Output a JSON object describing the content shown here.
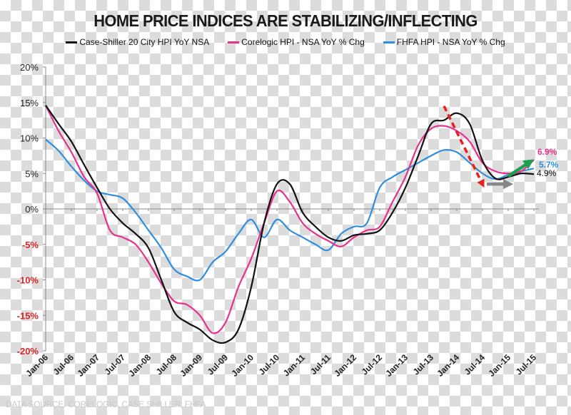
{
  "colors": {
    "case_shiller": "#111111",
    "corelogic": "#e8308f",
    "fhfa": "#2f8fde",
    "negative_tick": "#e02020",
    "positive_tick": "#222222",
    "arrow_red": "#e82020",
    "arrow_green": "#1aa050",
    "arrow_gray": "#888888",
    "source_text": "#c8c8c8"
  },
  "source": "DATA SOURCE: CORELOGIC, CASE SHILLER, FHFA",
  "chart_data": {
    "type": "line",
    "title": "HOME PRICE INDICES ARE STABILIZING/INFLECTING",
    "xlabel": "",
    "ylabel": "",
    "ylim": [
      -20,
      20
    ],
    "yticks": [
      20,
      15,
      10,
      5,
      0,
      -5,
      -10,
      -15,
      -20
    ],
    "ytick_labels": [
      "20%",
      "15%",
      "10%",
      "5%",
      "0%",
      "-5%",
      "-10%",
      "-15%",
      "-20%"
    ],
    "xtick_labels": [
      "Jan-06",
      "Jul-06",
      "Jan-07",
      "Jul-07",
      "Jan-08",
      "Jul-08",
      "Jan-09",
      "Jul-09",
      "Jan-10",
      "Jul-10",
      "Jan-11",
      "Jul-11",
      "Jan-12",
      "Jul-12",
      "Jan-13",
      "Jul-13",
      "Jan-14",
      "Jul-14",
      "Jan-15",
      "Jul-15"
    ],
    "x": [
      "Jan-06",
      "Apr-06",
      "Jul-06",
      "Oct-06",
      "Jan-07",
      "Apr-07",
      "Jul-07",
      "Oct-07",
      "Jan-08",
      "Apr-08",
      "Jul-08",
      "Oct-08",
      "Jan-09",
      "Apr-09",
      "Jul-09",
      "Oct-09",
      "Jan-10",
      "Apr-10",
      "Jul-10",
      "Oct-10",
      "Jan-11",
      "Apr-11",
      "Jul-11",
      "Oct-11",
      "Jan-12",
      "Apr-12",
      "Jul-12",
      "Oct-12",
      "Jan-13",
      "Apr-13",
      "Jul-13",
      "Oct-13",
      "Jan-14",
      "Apr-14",
      "Jul-14",
      "Oct-14",
      "Jan-15",
      "Apr-15",
      "Jul-15"
    ],
    "legend_position": "top-center",
    "grid": false,
    "series": [
      {
        "key": "case_shiller",
        "name": "Case-Shiller 20 City HPI YoY NSA",
        "values": [
          14.6,
          12,
          9.5,
          6.2,
          3,
          0,
          -2,
          -3.5,
          -5.5,
          -10,
          -14.5,
          -16,
          -17,
          -18.5,
          -18.8,
          -17,
          -11,
          -2,
          3.5,
          3.5,
          -0.5,
          -2.5,
          -4,
          -4.5,
          -3.7,
          -3.5,
          -3,
          -0.5,
          3,
          7.5,
          12,
          12.5,
          13.5,
          12,
          6.8,
          4.3,
          4.5,
          5,
          4.9
        ],
        "end_label": "4.9%"
      },
      {
        "key": "corelogic",
        "name": "Corelogic HPI - NSA YoY % Chg",
        "values": [
          14.6,
          11,
          8,
          4.5,
          2.2,
          -3,
          -4,
          -5,
          -7.5,
          -10.5,
          -13,
          -13.5,
          -15,
          -17.5,
          -16,
          -11,
          -7,
          -2,
          2.5,
          1,
          -2,
          -3.5,
          -4.5,
          -5.3,
          -4,
          -3,
          -2.5,
          1,
          4.5,
          9,
          11.3,
          11.7,
          11,
          9.5,
          6.5,
          5.3,
          5,
          5.3,
          6.9
        ],
        "end_label": "6.9%"
      },
      {
        "key": "fhfa",
        "name": "FHFA HPI - NSA YoY % Chg",
        "values": [
          9.8,
          8.2,
          6,
          4,
          2.5,
          2,
          1.5,
          -0.5,
          -3,
          -5.5,
          -8.5,
          -9.5,
          -10,
          -7.5,
          -6,
          -3.5,
          -1.5,
          -4,
          -1.5,
          -3,
          -4,
          -5,
          -5.8,
          -3.5,
          -2.5,
          -2,
          3,
          4.5,
          5.5,
          6.5,
          7.5,
          8.3,
          8,
          6.5,
          5,
          4.2,
          4.8,
          5.3,
          5.7
        ],
        "end_label": "5.7%"
      }
    ],
    "annotations": [
      {
        "type": "arrow",
        "style": "dashed",
        "color_key": "arrow_red",
        "from": [
          "Oct-13",
          14.5
        ],
        "to": [
          "Jul-14",
          3.5
        ],
        "meaning": "decline"
      },
      {
        "type": "arrow",
        "style": "solid",
        "color_key": "arrow_gray",
        "from": [
          "Aug-14",
          3.5
        ],
        "to": [
          "Jan-15",
          3.5
        ],
        "meaning": "flat"
      },
      {
        "type": "arrow",
        "style": "solid",
        "color_key": "arrow_green",
        "from": [
          "Jan-15",
          4.6
        ],
        "to": [
          "Jun-15",
          6.6
        ],
        "meaning": "rising"
      }
    ]
  }
}
